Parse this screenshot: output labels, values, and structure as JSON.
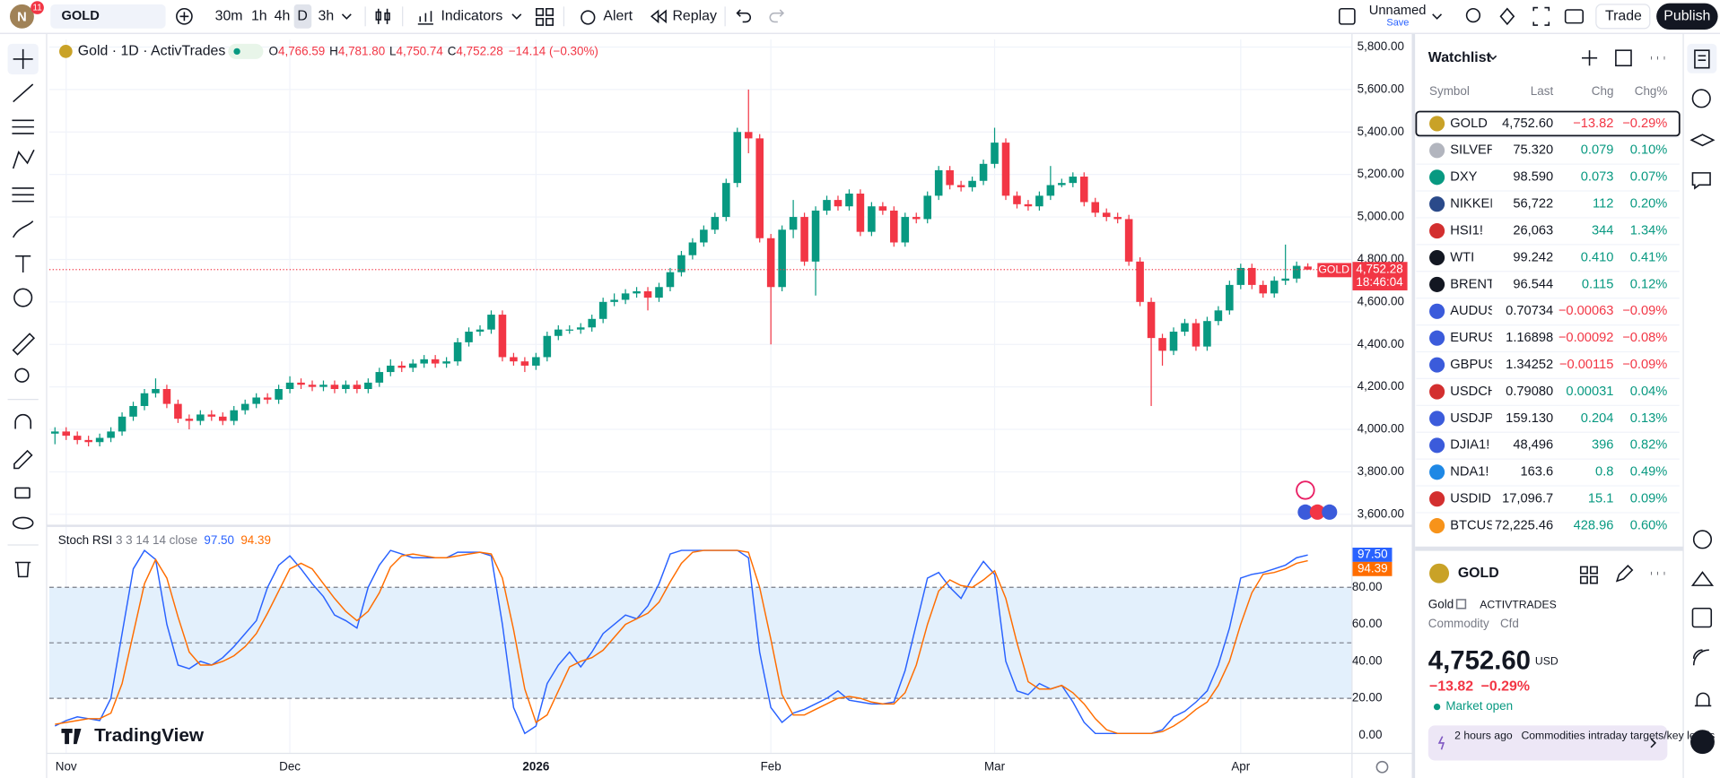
{
  "topbar": {
    "avatar": "N",
    "badge": "11",
    "symbol": "GOLD",
    "intervals": [
      "30m",
      "1h",
      "4h",
      "D",
      "3h"
    ],
    "indicators": "Indicators",
    "alert": "Alert",
    "replay": "Replay",
    "layout_name": "Unnamed",
    "save": "Save",
    "trade": "Trade",
    "publish": "Publish"
  },
  "legend": {
    "title": "Gold · 1D · ActivTrades",
    "o_label": "O",
    "open": "4,766.59",
    "h_label": "H",
    "high": "4,781.80",
    "l_label": "L",
    "low": "4,750.74",
    "c_label": "C",
    "close": "4,752.28",
    "change": "−14.14 (−0.30%)"
  },
  "chart": {
    "type": "candlestick",
    "up_color": "#089981",
    "down_color": "#f23645",
    "ylim": [
      3559,
      5836
    ],
    "xlim": [
      -0.5,
      115.9
    ],
    "yticks": [
      {
        "value": 3600,
        "label": "3,600.00"
      },
      {
        "value": 3800,
        "label": "3,800.00"
      },
      {
        "value": 4000,
        "label": "4,000.00"
      },
      {
        "value": 4200,
        "label": "4,200.00"
      },
      {
        "value": 4400,
        "label": "4,400.00"
      },
      {
        "value": 4600,
        "label": "4,600.00"
      },
      {
        "value": 4800,
        "label": "4,800.00"
      },
      {
        "value": 5000,
        "label": "5,000.00"
      },
      {
        "value": 5200,
        "label": "5,200.00"
      },
      {
        "value": 5400,
        "label": "5,400.00"
      },
      {
        "value": 5600,
        "label": "5,600.00"
      },
      {
        "value": 5800,
        "label": "5,800.00"
      }
    ],
    "xticks": [
      {
        "value": 1,
        "label": "Nov"
      },
      {
        "value": 21,
        "label": "Dec"
      },
      {
        "value": 43,
        "label": "2026"
      },
      {
        "value": 64,
        "label": "Feb"
      },
      {
        "value": 84,
        "label": "Mar"
      },
      {
        "value": 106,
        "label": "Apr"
      }
    ],
    "last_price": 4752.28,
    "last_price_label": "4,752.28",
    "countdown": "18:46:04",
    "price_line_tag": "GOLD",
    "watermark": "TradingView",
    "candles": [
      [
        3980,
        4010,
        3930,
        3990
      ],
      [
        3990,
        4010,
        3950,
        3970
      ],
      [
        3970,
        3990,
        3930,
        3950
      ],
      [
        3950,
        3970,
        3920,
        3940
      ],
      [
        3940,
        3980,
        3920,
        3960
      ],
      [
        3960,
        4010,
        3940,
        3990
      ],
      [
        3990,
        4080,
        3970,
        4060
      ],
      [
        4060,
        4130,
        4040,
        4110
      ],
      [
        4110,
        4190,
        4090,
        4170
      ],
      [
        4170,
        4240,
        4150,
        4190
      ],
      [
        4190,
        4210,
        4100,
        4120
      ],
      [
        4120,
        4140,
        4030,
        4050
      ],
      [
        4050,
        4070,
        4000,
        4040
      ],
      [
        4040,
        4090,
        4020,
        4070
      ],
      [
        4070,
        4090,
        4040,
        4060
      ],
      [
        4060,
        4080,
        4020,
        4040
      ],
      [
        4040,
        4110,
        4020,
        4090
      ],
      [
        4090,
        4140,
        4070,
        4120
      ],
      [
        4120,
        4170,
        4100,
        4150
      ],
      [
        4150,
        4170,
        4120,
        4140
      ],
      [
        4140,
        4210,
        4120,
        4190
      ],
      [
        4190,
        4250,
        4170,
        4220
      ],
      [
        4220,
        4240,
        4190,
        4210
      ],
      [
        4210,
        4230,
        4180,
        4200
      ],
      [
        4200,
        4230,
        4180,
        4210
      ],
      [
        4210,
        4230,
        4170,
        4190
      ],
      [
        4190,
        4230,
        4170,
        4210
      ],
      [
        4210,
        4230,
        4170,
        4190
      ],
      [
        4190,
        4240,
        4170,
        4220
      ],
      [
        4220,
        4290,
        4200,
        4270
      ],
      [
        4270,
        4330,
        4250,
        4300
      ],
      [
        4300,
        4320,
        4270,
        4290
      ],
      [
        4290,
        4330,
        4270,
        4310
      ],
      [
        4310,
        4350,
        4290,
        4330
      ],
      [
        4330,
        4350,
        4290,
        4310
      ],
      [
        4310,
        4340,
        4290,
        4320
      ],
      [
        4320,
        4430,
        4300,
        4410
      ],
      [
        4410,
        4480,
        4390,
        4460
      ],
      [
        4460,
        4490,
        4440,
        4470
      ],
      [
        4470,
        4560,
        4450,
        4540
      ],
      [
        4540,
        4560,
        4320,
        4340
      ],
      [
        4340,
        4360,
        4300,
        4320
      ],
      [
        4320,
        4340,
        4270,
        4300
      ],
      [
        4300,
        4360,
        4280,
        4340
      ],
      [
        4340,
        4460,
        4320,
        4440
      ],
      [
        4440,
        4490,
        4420,
        4470
      ],
      [
        4470,
        4490,
        4450,
        4470
      ],
      [
        4470,
        4500,
        4450,
        4480
      ],
      [
        4480,
        4540,
        4460,
        4520
      ],
      [
        4520,
        4620,
        4500,
        4600
      ],
      [
        4600,
        4640,
        4580,
        4610
      ],
      [
        4610,
        4660,
        4590,
        4640
      ],
      [
        4640,
        4670,
        4620,
        4650
      ],
      [
        4650,
        4670,
        4560,
        4620
      ],
      [
        4620,
        4690,
        4600,
        4670
      ],
      [
        4670,
        4760,
        4650,
        4740
      ],
      [
        4740,
        4840,
        4720,
        4820
      ],
      [
        4820,
        4900,
        4800,
        4880
      ],
      [
        4880,
        4960,
        4860,
        4940
      ],
      [
        4940,
        5020,
        4920,
        5000
      ],
      [
        5000,
        5180,
        4980,
        5160
      ],
      [
        5160,
        5420,
        5140,
        5400
      ],
      [
        5400,
        5600,
        5300,
        5370
      ],
      [
        5370,
        5390,
        4880,
        4900
      ],
      [
        4900,
        4920,
        4400,
        4670
      ],
      [
        4670,
        4960,
        4650,
        4940
      ],
      [
        4940,
        5080,
        4900,
        5000
      ],
      [
        5000,
        5020,
        4770,
        4790
      ],
      [
        4790,
        5050,
        4630,
        5030
      ],
      [
        5030,
        5100,
        5010,
        5080
      ],
      [
        5080,
        5100,
        5030,
        5050
      ],
      [
        5050,
        5130,
        5030,
        5110
      ],
      [
        5110,
        5130,
        4910,
        4930
      ],
      [
        4930,
        5070,
        4910,
        5050
      ],
      [
        5050,
        5070,
        5010,
        5030
      ],
      [
        5030,
        5050,
        4860,
        4880
      ],
      [
        4880,
        5020,
        4860,
        5000
      ],
      [
        5000,
        5020,
        4970,
        4990
      ],
      [
        4990,
        5120,
        4970,
        5100
      ],
      [
        5100,
        5240,
        5080,
        5220
      ],
      [
        5220,
        5240,
        5130,
        5150
      ],
      [
        5150,
        5170,
        5120,
        5140
      ],
      [
        5140,
        5190,
        5120,
        5170
      ],
      [
        5170,
        5270,
        5150,
        5250
      ],
      [
        5250,
        5420,
        5230,
        5350
      ],
      [
        5350,
        5370,
        5080,
        5100
      ],
      [
        5100,
        5120,
        5040,
        5060
      ],
      [
        5060,
        5080,
        5030,
        5050
      ],
      [
        5050,
        5120,
        5030,
        5100
      ],
      [
        5100,
        5240,
        5080,
        5150
      ],
      [
        5150,
        5180,
        5140,
        5160
      ],
      [
        5160,
        5210,
        5140,
        5190
      ],
      [
        5190,
        5210,
        5050,
        5070
      ],
      [
        5070,
        5090,
        5000,
        5020
      ],
      [
        5020,
        5040,
        4980,
        5000
      ],
      [
        5000,
        5020,
        4970,
        4990
      ],
      [
        4990,
        5010,
        4770,
        4790
      ],
      [
        4790,
        4810,
        4580,
        4600
      ],
      [
        4600,
        4620,
        4110,
        4430
      ],
      [
        4430,
        4450,
        4300,
        4370
      ],
      [
        4370,
        4480,
        4350,
        4460
      ],
      [
        4460,
        4520,
        4440,
        4500
      ],
      [
        4500,
        4520,
        4370,
        4390
      ],
      [
        4390,
        4530,
        4370,
        4510
      ],
      [
        4510,
        4580,
        4490,
        4560
      ],
      [
        4560,
        4700,
        4540,
        4680
      ],
      [
        4680,
        4780,
        4660,
        4760
      ],
      [
        4760,
        4780,
        4660,
        4680
      ],
      [
        4680,
        4700,
        4620,
        4640
      ],
      [
        4640,
        4720,
        4620,
        4700
      ],
      [
        4700,
        4870,
        4680,
        4710
      ],
      [
        4710,
        4790,
        4690,
        4770
      ],
      [
        4766.59,
        4781.8,
        4750.74,
        4752.28
      ]
    ]
  },
  "stoch": {
    "type": "line",
    "title": "Stoch RSI",
    "params": "3 3 14 14 close",
    "ylim": [
      -9.47,
      112.4
    ],
    "levels": [
      20,
      50,
      80
    ],
    "band_color": "#e3f0fc",
    "yticks": [
      {
        "value": 0,
        "label": "0.00"
      },
      {
        "value": 20,
        "label": "20.00"
      },
      {
        "value": 40,
        "label": "40.00"
      },
      {
        "value": 60,
        "label": "60.00"
      },
      {
        "value": 80,
        "label": "80.00"
      }
    ],
    "series": [
      {
        "color": "#2962ff",
        "last_label": "97.50",
        "values": [
          5,
          8,
          10,
          9,
          8,
          20,
          55,
          90,
          100,
          95,
          60,
          38,
          36,
          40,
          38,
          42,
          48,
          55,
          62,
          80,
          92,
          97,
          90,
          82,
          75,
          65,
          62,
          58,
          80,
          92,
          100,
          98,
          96,
          96,
          96,
          96,
          99,
          99,
          99,
          97,
          60,
          15,
          1,
          5,
          28,
          38,
          45,
          37,
          45,
          55,
          60,
          65,
          63,
          70,
          82,
          98,
          100,
          100,
          100,
          100,
          100,
          100,
          96,
          45,
          15,
          7,
          12,
          14,
          17,
          20,
          24,
          19,
          18,
          17,
          17,
          18,
          35,
          60,
          85,
          88,
          80,
          74,
          85,
          94,
          87,
          40,
          24,
          22,
          28,
          25,
          27,
          18,
          7,
          1,
          1,
          1,
          1,
          1,
          1,
          3,
          10,
          13,
          18,
          24,
          38,
          58,
          85,
          87,
          88,
          90,
          92,
          96,
          97.5
        ]
      },
      {
        "color": "#ff6d00",
        "last_label": "94.39",
        "values": [
          6,
          7,
          8,
          9,
          9,
          12,
          28,
          55,
          82,
          95,
          85,
          64,
          45,
          38,
          38,
          40,
          43,
          48,
          55,
          66,
          78,
          90,
          93,
          90,
          82,
          74,
          67,
          62,
          67,
          77,
          91,
          97,
          98,
          97,
          96,
          96,
          97,
          98,
          99,
          98,
          85,
          57,
          25,
          7,
          11,
          24,
          37,
          40,
          42,
          46,
          53,
          60,
          63,
          66,
          72,
          83,
          93,
          99,
          100,
          100,
          100,
          100,
          99,
          80,
          52,
          22,
          11,
          11,
          14,
          17,
          20,
          21,
          20,
          18,
          17,
          17,
          23,
          38,
          60,
          78,
          84,
          81,
          80,
          84,
          89,
          74,
          50,
          29,
          25,
          25,
          27,
          23,
          17,
          9,
          3,
          1,
          1,
          1,
          1,
          2,
          5,
          9,
          14,
          18,
          27,
          40,
          60,
          77,
          87,
          88,
          90,
          93,
          94.39
        ]
      }
    ]
  },
  "watchlist": {
    "title": "Watchlist",
    "columns": [
      "Symbol",
      "Last",
      "Chg",
      "Chg%"
    ],
    "rows": [
      {
        "icon_color": "#c9a227",
        "symbol": "GOLD",
        "last": "4,752.60",
        "chg": "−13.82",
        "chg_pct": "−0.29%",
        "color": "#f23645"
      },
      {
        "icon_color": "#b2b5be",
        "symbol": "SILVER",
        "last": "75.320",
        "chg": "0.079",
        "chg_pct": "0.10%",
        "color": "#089981"
      },
      {
        "icon_color": "#089981",
        "symbol": "DXY",
        "last": "98.590",
        "chg": "0.073",
        "chg_pct": "0.07%",
        "color": "#089981"
      },
      {
        "icon_color": "#2a4a8a",
        "symbol": "NIKKEI",
        "last": "56,722",
        "chg": "112",
        "chg_pct": "0.20%",
        "color": "#089981"
      },
      {
        "icon_color": "#d32f2f",
        "symbol": "HSI1!",
        "last": "26,063",
        "chg": "344",
        "chg_pct": "1.34%",
        "color": "#089981"
      },
      {
        "icon_color": "#131722",
        "symbol": "WTI",
        "last": "99.242",
        "chg": "0.410",
        "chg_pct": "0.41%",
        "color": "#089981"
      },
      {
        "icon_color": "#131722",
        "symbol": "BRENT",
        "last": "96.544",
        "chg": "0.115",
        "chg_pct": "0.12%",
        "color": "#089981"
      },
      {
        "icon_color": "#3b5bdb",
        "symbol": "AUDUSD",
        "last": "0.70734",
        "chg": "−0.00063",
        "chg_pct": "−0.09%",
        "color": "#f23645"
      },
      {
        "icon_color": "#3b5bdb",
        "symbol": "EURUSD",
        "last": "1.16898",
        "chg": "−0.00092",
        "chg_pct": "−0.08%",
        "color": "#f23645"
      },
      {
        "icon_color": "#3b5bdb",
        "symbol": "GBPUSD",
        "last": "1.34252",
        "chg": "−0.00115",
        "chg_pct": "−0.09%",
        "color": "#f23645"
      },
      {
        "icon_color": "#d32f2f",
        "symbol": "USDCHF",
        "last": "0.79080",
        "chg": "0.00031",
        "chg_pct": "0.04%",
        "color": "#089981"
      },
      {
        "icon_color": "#3b5bdb",
        "symbol": "USDJPY",
        "last": "159.130",
        "chg": "0.204",
        "chg_pct": "0.13%",
        "color": "#089981"
      },
      {
        "icon_color": "#3b5bdb",
        "symbol": "DJIA1!",
        "last": "48,496",
        "chg": "396",
        "chg_pct": "0.82%",
        "color": "#089981"
      },
      {
        "icon_color": "#1e88e5",
        "symbol": "NDA1!",
        "last": "163.6",
        "chg": "0.8",
        "chg_pct": "0.49%",
        "color": "#089981"
      },
      {
        "icon_color": "#d32f2f",
        "symbol": "USDIDR",
        "last": "17,096.7",
        "chg": "15.1",
        "chg_pct": "0.09%",
        "color": "#089981"
      },
      {
        "icon_color": "#f7931a",
        "symbol": "BTCUSD",
        "last": "72,225.46",
        "chg": "428.96",
        "chg_pct": "0.60%",
        "color": "#089981"
      }
    ]
  },
  "details": {
    "symbol": "GOLD",
    "name": "Gold",
    "exchange": "ACTIVTRADES",
    "category": "Commodity",
    "subtype": "Cfd",
    "price": "4,752.60",
    "currency": "USD",
    "change": "−13.82",
    "change_pct": "−0.29%",
    "status": "Market open",
    "news_time": "2 hours ago",
    "news_title": "Commodities intraday targets/key levels"
  }
}
